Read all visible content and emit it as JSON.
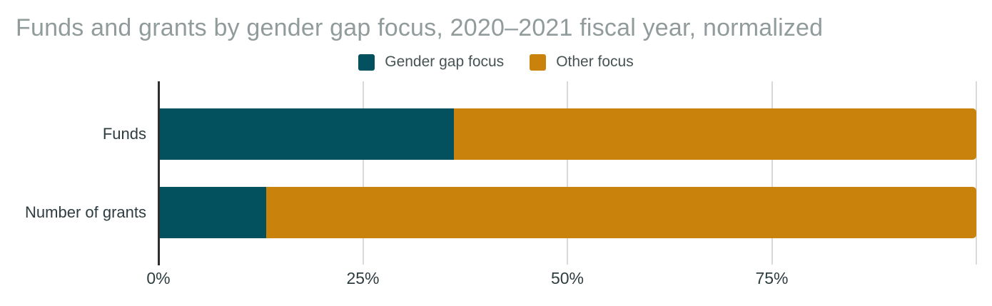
{
  "title": "Funds and grants by gender gap focus, 2020–2021 fiscal year, normalized",
  "legend": {
    "items": [
      {
        "label": "Gender gap focus",
        "color": "#03515E"
      },
      {
        "label": "Other focus",
        "color": "#C9830D"
      }
    ]
  },
  "axis": {
    "tick_labels": [
      "0%",
      "25%",
      "50%",
      "75%"
    ],
    "tick_positions_pct": [
      0,
      25,
      50,
      75
    ],
    "gridline_positions_pct": [
      25,
      50,
      75,
      100
    ]
  },
  "chart_data": {
    "type": "bar",
    "orientation": "horizontal",
    "stacked": true,
    "normalized": true,
    "title": "Funds and grants by gender gap focus, 2020–2021 fiscal year, normalized",
    "categories": [
      "Funds",
      "Number of grants"
    ],
    "series": [
      {
        "name": "Gender gap focus",
        "color": "#03515E",
        "values": [
          36,
          13
        ]
      },
      {
        "name": "Other focus",
        "color": "#C9830D",
        "values": [
          64,
          87
        ]
      }
    ],
    "xlim": [
      0,
      100
    ],
    "x_tick_labels": [
      "0%",
      "25%",
      "50%",
      "75%"
    ],
    "grid": true,
    "legend_position": "top-center",
    "xlabel": "",
    "ylabel": ""
  },
  "colors": {
    "title_text": "#919B9B",
    "label_text": "#2E3C40",
    "legend_text": "#475254",
    "axis_line": "#2E2E2E",
    "gridline": "#D9D9D9",
    "background": "#FFFFFF"
  }
}
